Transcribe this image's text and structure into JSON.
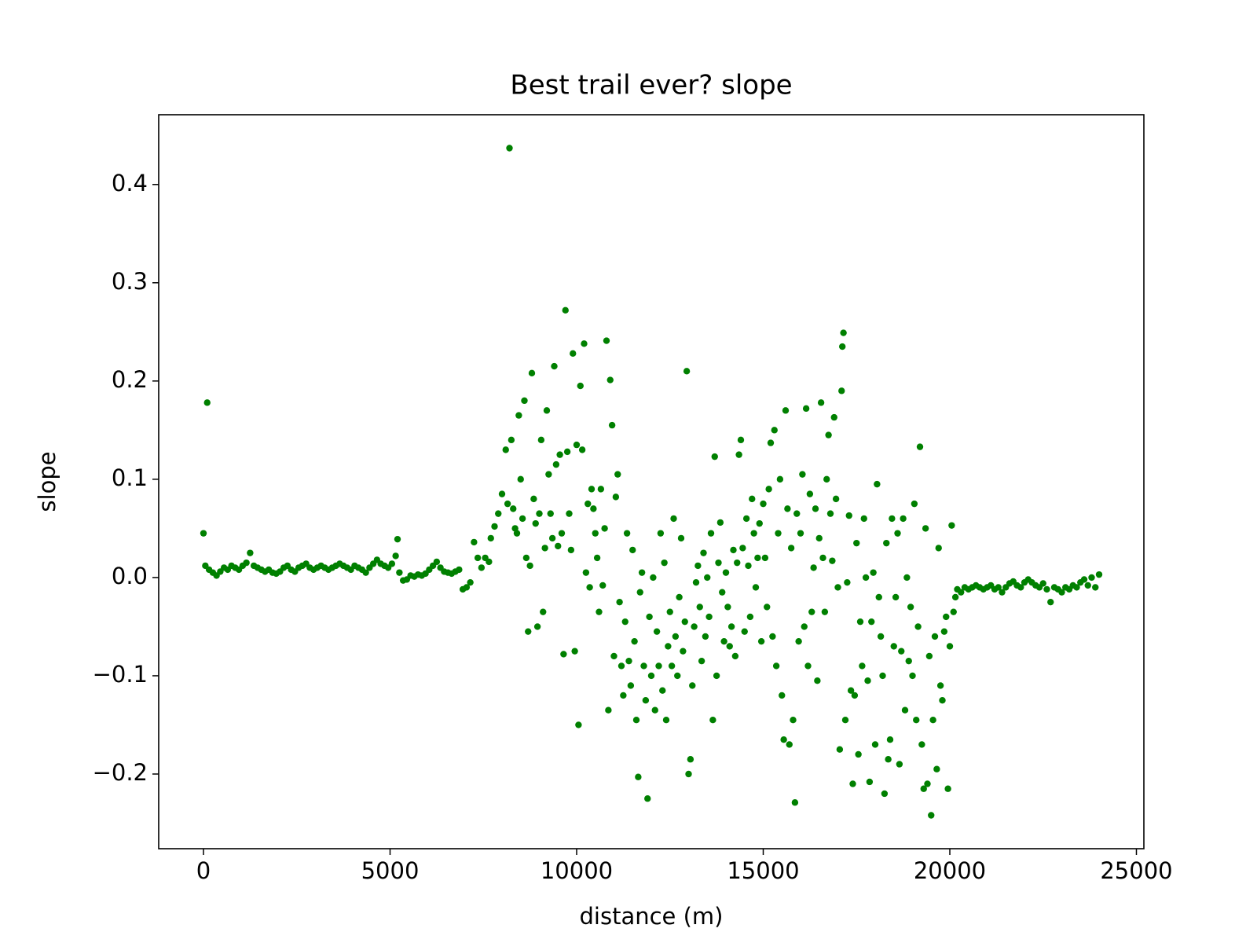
{
  "chart_data": {
    "type": "scatter",
    "title": "Best trail ever? slope",
    "x_label": "distance (m)",
    "y_label": "slope",
    "color": "#008000",
    "xlim": [
      -1200,
      25200
    ],
    "ylim": [
      -0.276,
      0.471
    ],
    "xticks": [
      0,
      5000,
      10000,
      15000,
      20000,
      25000
    ],
    "yticks": [
      {
        "value": -0.2,
        "label": "−0.2"
      },
      {
        "value": -0.1,
        "label": "−0.1"
      },
      {
        "value": 0,
        "label": "0.0"
      },
      0.1,
      0.2,
      0.3,
      0.4
    ],
    "x": [
      0,
      50,
      100,
      150,
      250,
      350,
      450,
      550,
      650,
      750,
      850,
      950,
      1050,
      1150,
      1250,
      1350,
      1450,
      1550,
      1650,
      1750,
      1850,
      1950,
      2050,
      2150,
      2250,
      2350,
      2450,
      2550,
      2650,
      2750,
      2850,
      2950,
      3050,
      3150,
      3250,
      3350,
      3450,
      3550,
      3650,
      3750,
      3850,
      3950,
      4050,
      4150,
      4250,
      4350,
      4450,
      4550,
      4650,
      4750,
      4850,
      4950,
      5050,
      5150,
      5200,
      5250,
      5350,
      5450,
      5550,
      5650,
      5750,
      5850,
      5950,
      6050,
      6150,
      6250,
      6350,
      6450,
      6550,
      6650,
      6750,
      6850,
      6950,
      7050,
      7150,
      7250,
      7350,
      7450,
      7550,
      7650,
      7700,
      7800,
      7900,
      8000,
      8100,
      8150,
      8200,
      8250,
      8300,
      8350,
      8400,
      8450,
      8500,
      8550,
      8600,
      8650,
      8700,
      8750,
      8800,
      8850,
      8900,
      8950,
      9000,
      9050,
      9100,
      9150,
      9200,
      9250,
      9300,
      9350,
      9400,
      9450,
      9500,
      9550,
      9600,
      9650,
      9700,
      9750,
      9800,
      9850,
      9900,
      9950,
      10000,
      10050,
      10100,
      10150,
      10200,
      10250,
      10300,
      10350,
      10400,
      10450,
      10500,
      10550,
      10600,
      10650,
      10700,
      10750,
      10800,
      10850,
      10900,
      10950,
      11000,
      11050,
      11100,
      11150,
      11200,
      11250,
      11300,
      11350,
      11400,
      11450,
      11500,
      11550,
      11600,
      11650,
      11700,
      11750,
      11800,
      11850,
      11900,
      11950,
      12000,
      12050,
      12100,
      12150,
      12200,
      12250,
      12300,
      12350,
      12400,
      12450,
      12500,
      12550,
      12600,
      12650,
      12700,
      12750,
      12800,
      12850,
      12900,
      12950,
      13000,
      13050,
      13100,
      13150,
      13200,
      13250,
      13300,
      13350,
      13400,
      13450,
      13500,
      13550,
      13600,
      13650,
      13700,
      13750,
      13800,
      13850,
      13900,
      13950,
      14000,
      14050,
      14100,
      14150,
      14200,
      14250,
      14300,
      14350,
      14400,
      14450,
      14500,
      14550,
      14600,
      14650,
      14700,
      14750,
      14800,
      14850,
      14900,
      14950,
      15000,
      15050,
      15100,
      15150,
      15200,
      15250,
      15300,
      15350,
      15400,
      15450,
      15500,
      15550,
      15600,
      15650,
      15700,
      15750,
      15800,
      15850,
      15900,
      15950,
      16000,
      16050,
      16100,
      16150,
      16200,
      16250,
      16300,
      16350,
      16400,
      16450,
      16500,
      16550,
      16600,
      16650,
      16700,
      16750,
      16800,
      16850,
      16900,
      16950,
      17000,
      17050,
      17100,
      17150,
      17120,
      17200,
      17250,
      17300,
      17350,
      17400,
      17450,
      17500,
      17550,
      17600,
      17650,
      17700,
      17750,
      17800,
      17850,
      17900,
      17950,
      18000,
      18050,
      18100,
      18150,
      18200,
      18250,
      18300,
      18350,
      18400,
      18450,
      18500,
      18550,
      18600,
      18650,
      18700,
      18750,
      18800,
      18850,
      18900,
      18950,
      19000,
      19050,
      19100,
      19150,
      19200,
      19250,
      19300,
      19350,
      19400,
      19450,
      19500,
      19550,
      19600,
      19650,
      19700,
      19750,
      19800,
      19850,
      19900,
      19950,
      20000,
      20050,
      20100,
      20150,
      20200,
      20300,
      20400,
      20500,
      20600,
      20700,
      20800,
      20900,
      21000,
      21100,
      21200,
      21300,
      21400,
      21500,
      21600,
      21700,
      21800,
      21900,
      22000,
      22100,
      22200,
      22300,
      22400,
      22500,
      22600,
      22700,
      22800,
      22900,
      23000,
      23100,
      23200,
      23300,
      23400,
      23500,
      23600,
      23700,
      23800,
      23900,
      24000
    ],
    "values": [
      0.045,
      0.012,
      0.178,
      0.008,
      0.005,
      0.002,
      0.006,
      0.01,
      0.008,
      0.012,
      0.01,
      0.008,
      0.012,
      0.015,
      0.025,
      0.012,
      0.01,
      0.008,
      0.006,
      0.008,
      0.005,
      0.004,
      0.006,
      0.01,
      0.012,
      0.008,
      0.006,
      0.01,
      0.012,
      0.014,
      0.01,
      0.008,
      0.01,
      0.012,
      0.01,
      0.008,
      0.01,
      0.012,
      0.014,
      0.012,
      0.01,
      0.008,
      0.012,
      0.01,
      0.008,
      0.005,
      0.01,
      0.014,
      0.018,
      0.014,
      0.012,
      0.01,
      0.014,
      0.022,
      0.039,
      0.005,
      -0.003,
      -0.002,
      0.002,
      0.001,
      0.003,
      0.002,
      0.004,
      0.008,
      0.012,
      0.016,
      0.01,
      0.006,
      0.005,
      0.004,
      0.006,
      0.008,
      -0.012,
      -0.01,
      -0.005,
      0.036,
      0.02,
      0.01,
      0.02,
      0.016,
      0.04,
      0.052,
      0.065,
      0.085,
      0.13,
      0.075,
      0.437,
      0.14,
      0.07,
      0.05,
      0.045,
      0.165,
      0.1,
      0.06,
      0.18,
      0.02,
      -0.055,
      0.012,
      0.208,
      0.08,
      0.055,
      -0.05,
      0.065,
      0.14,
      -0.035,
      0.03,
      0.17,
      0.105,
      0.065,
      0.04,
      0.215,
      0.115,
      0.032,
      0.125,
      0.045,
      -0.078,
      0.272,
      0.128,
      0.065,
      0.028,
      0.228,
      -0.075,
      0.135,
      -0.15,
      0.195,
      0.13,
      0.238,
      0.005,
      0.075,
      -0.01,
      0.09,
      0.07,
      0.045,
      0.02,
      -0.035,
      0.09,
      -0.008,
      0.05,
      0.241,
      -0.135,
      0.201,
      0.155,
      -0.08,
      0.082,
      0.105,
      -0.025,
      -0.09,
      -0.12,
      -0.045,
      0.045,
      -0.085,
      -0.11,
      0.028,
      -0.065,
      -0.145,
      -0.203,
      -0.015,
      0.005,
      -0.09,
      -0.125,
      -0.225,
      -0.04,
      -0.1,
      0.0,
      -0.135,
      -0.055,
      -0.09,
      0.045,
      -0.115,
      0.015,
      -0.145,
      -0.07,
      -0.035,
      -0.09,
      0.06,
      -0.06,
      -0.1,
      -0.02,
      0.04,
      -0.075,
      -0.045,
      0.21,
      -0.2,
      -0.185,
      -0.11,
      -0.05,
      -0.005,
      0.012,
      -0.03,
      -0.085,
      0.025,
      -0.06,
      0.0,
      -0.04,
      0.045,
      -0.145,
      0.123,
      -0.1,
      0.015,
      0.056,
      -0.015,
      -0.065,
      0.005,
      -0.03,
      -0.07,
      -0.05,
      0.028,
      -0.08,
      0.015,
      0.125,
      0.14,
      0.03,
      -0.055,
      0.06,
      0.012,
      -0.04,
      0.08,
      0.045,
      -0.01,
      0.02,
      0.055,
      -0.065,
      0.075,
      0.02,
      -0.03,
      0.09,
      0.137,
      -0.06,
      0.15,
      -0.09,
      0.045,
      0.1,
      -0.12,
      -0.165,
      0.17,
      0.07,
      -0.17,
      0.03,
      -0.145,
      -0.229,
      0.065,
      -0.065,
      0.045,
      0.105,
      -0.05,
      0.172,
      -0.09,
      0.085,
      -0.035,
      0.01,
      0.07,
      -0.105,
      0.04,
      0.178,
      0.02,
      -0.035,
      0.1,
      0.145,
      0.065,
      0.017,
      0.163,
      0.08,
      -0.01,
      -0.175,
      0.19,
      0.249,
      0.235,
      -0.145,
      -0.005,
      0.063,
      -0.115,
      -0.21,
      -0.12,
      0.035,
      -0.18,
      -0.045,
      -0.09,
      0.06,
      0.0,
      -0.105,
      -0.208,
      -0.045,
      0.005,
      -0.17,
      0.095,
      -0.02,
      -0.06,
      -0.1,
      -0.22,
      0.035,
      -0.185,
      -0.165,
      0.06,
      -0.07,
      -0.02,
      0.045,
      -0.19,
      -0.075,
      0.06,
      -0.135,
      0.0,
      -0.085,
      -0.03,
      -0.1,
      0.075,
      -0.145,
      -0.05,
      0.133,
      -0.17,
      -0.215,
      0.05,
      -0.21,
      -0.08,
      -0.242,
      -0.145,
      -0.06,
      -0.195,
      0.03,
      -0.11,
      -0.125,
      -0.055,
      -0.04,
      -0.215,
      -0.07,
      0.053,
      -0.035,
      -0.02,
      -0.012,
      -0.015,
      -0.01,
      -0.012,
      -0.01,
      -0.008,
      -0.01,
      -0.012,
      -0.01,
      -0.008,
      -0.012,
      -0.01,
      -0.015,
      -0.01,
      -0.006,
      -0.004,
      -0.008,
      -0.01,
      -0.005,
      -0.002,
      -0.005,
      -0.008,
      -0.01,
      -0.006,
      -0.012,
      -0.025,
      -0.01,
      -0.012,
      -0.015,
      -0.01,
      -0.012,
      -0.008,
      -0.01,
      -0.005,
      -0.002,
      -0.008,
      0.0,
      -0.01,
      0.003
    ]
  }
}
